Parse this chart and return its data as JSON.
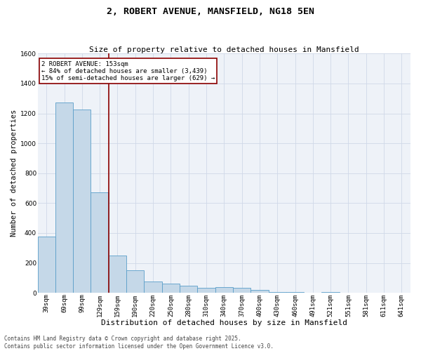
{
  "title": "2, ROBERT AVENUE, MANSFIELD, NG18 5EN",
  "subtitle": "Size of property relative to detached houses in Mansfield",
  "xlabel": "Distribution of detached houses by size in Mansfield",
  "ylabel": "Number of detached properties",
  "categories": [
    "39sqm",
    "69sqm",
    "99sqm",
    "129sqm",
    "159sqm",
    "190sqm",
    "220sqm",
    "250sqm",
    "280sqm",
    "310sqm",
    "340sqm",
    "370sqm",
    "400sqm",
    "430sqm",
    "460sqm",
    "491sqm",
    "521sqm",
    "551sqm",
    "581sqm",
    "611sqm",
    "641sqm"
  ],
  "values": [
    375,
    1275,
    1225,
    670,
    250,
    150,
    75,
    60,
    50,
    35,
    40,
    35,
    20,
    5,
    5,
    0,
    5,
    0,
    0,
    0,
    0
  ],
  "bar_color": "#c5d8e8",
  "bar_edge_color": "#5a9ec9",
  "vline_x": 3.5,
  "vline_color": "#8b0000",
  "annotation_text": "2 ROBERT AVENUE: 153sqm\n← 84% of detached houses are smaller (3,439)\n15% of semi-detached houses are larger (629) →",
  "annotation_box_color": "#8b0000",
  "ylim": [
    0,
    1600
  ],
  "yticks": [
    0,
    200,
    400,
    600,
    800,
    1000,
    1200,
    1400,
    1600
  ],
  "grid_color": "#d0d8e8",
  "background_color": "#eef2f8",
  "footer_text": "Contains HM Land Registry data © Crown copyright and database right 2025.\nContains public sector information licensed under the Open Government Licence v3.0.",
  "title_fontsize": 9.5,
  "subtitle_fontsize": 8,
  "xlabel_fontsize": 8,
  "ylabel_fontsize": 7.5,
  "tick_fontsize": 6.5,
  "annotation_fontsize": 6.5,
  "footer_fontsize": 5.5
}
